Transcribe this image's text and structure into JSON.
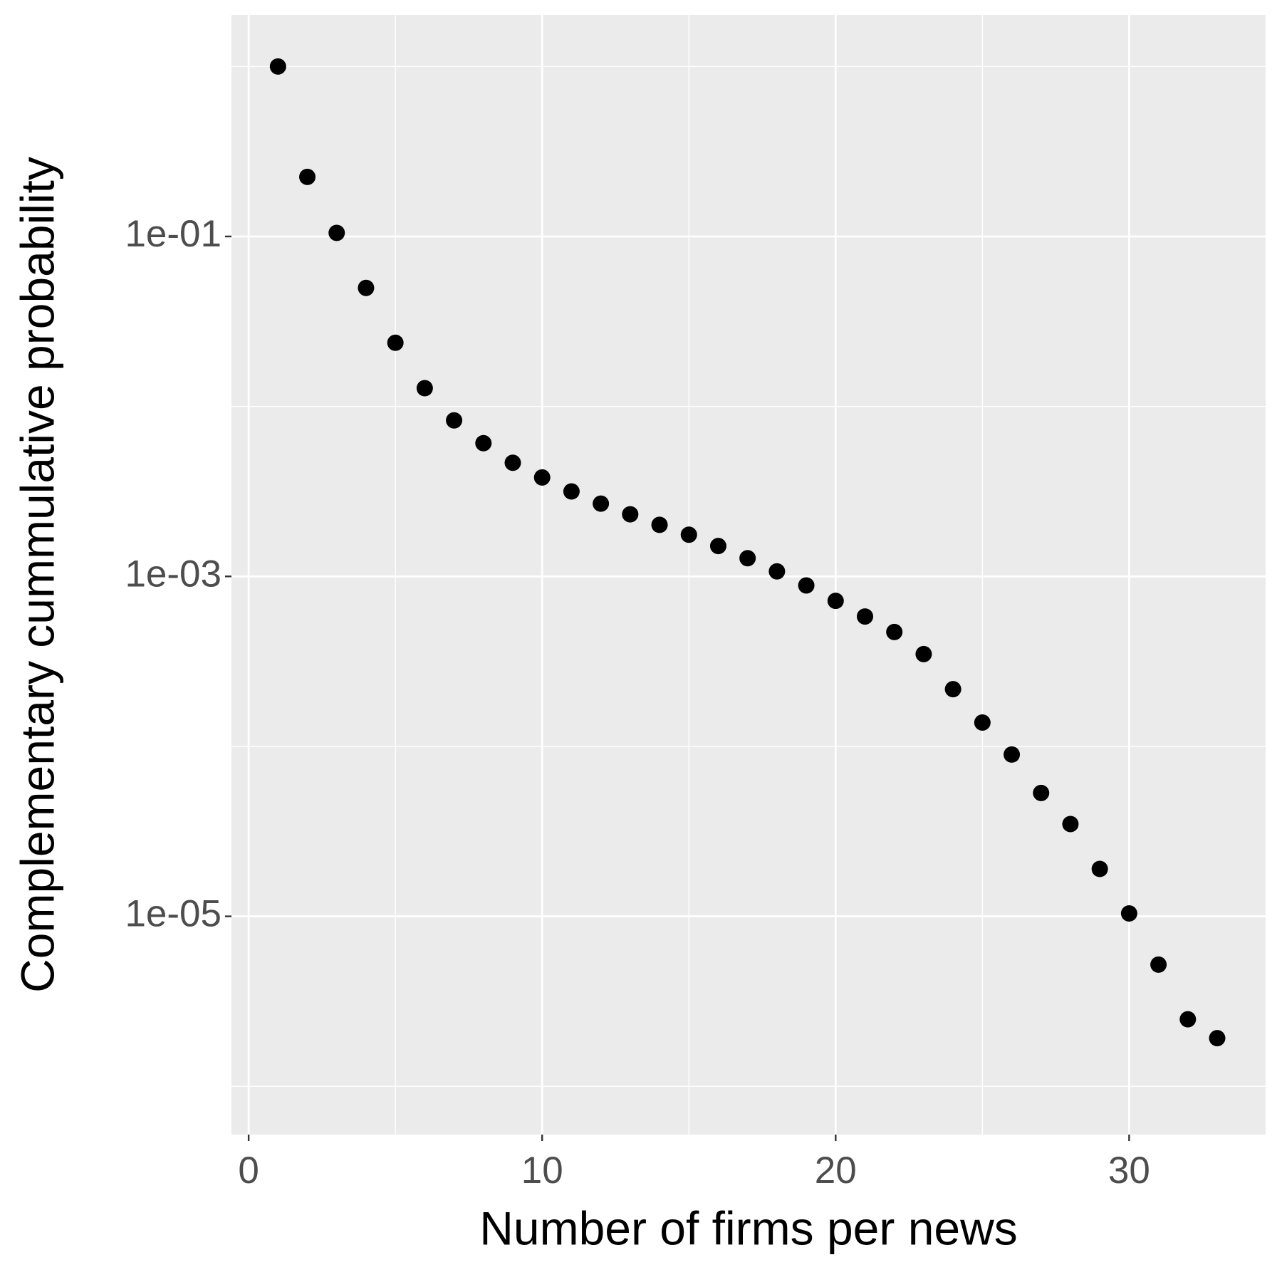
{
  "chart_data": {
    "type": "scatter",
    "x_label": "Number of firms per news",
    "y_label": "Complementary cummulative probability",
    "x": [
      1,
      2,
      3,
      4,
      5,
      6,
      7,
      8,
      9,
      10,
      11,
      12,
      13,
      14,
      15,
      16,
      17,
      18,
      19,
      20,
      21,
      22,
      23,
      24,
      25,
      26,
      27,
      28,
      29,
      30,
      31,
      32,
      33
    ],
    "values": [
      1.0,
      0.224,
      0.105,
      0.0498,
      0.0237,
      0.0128,
      0.00828,
      0.00608,
      0.00466,
      0.00382,
      0.00316,
      0.00268,
      0.00232,
      0.00201,
      0.00176,
      0.00151,
      0.00128,
      0.00107,
      0.000885,
      0.000718,
      0.000581,
      0.000471,
      0.000349,
      0.000217,
      0.000138,
      8.95e-05,
      5.32e-05,
      3.49e-05,
      1.9e-05,
      1.04e-05,
      5.2e-06,
      2.48e-06,
      1.92e-06
    ],
    "color": "#000000",
    "xlim": [
      -0.585,
      34.65
    ],
    "xticks": [
      0,
      10,
      20,
      30
    ],
    "xminor": [
      5,
      15,
      25
    ],
    "ylim": [
      5.2e-07,
      2.01
    ],
    "ylog": true,
    "yticks": [
      {
        "value": 0.1,
        "label": "1e-01"
      },
      {
        "value": 0.001,
        "label": "1e-03"
      },
      {
        "value": 1e-05,
        "label": "1e-05"
      }
    ],
    "yminor": [
      1,
      0.01,
      0.0001,
      1e-06
    ],
    "grid": true
  }
}
